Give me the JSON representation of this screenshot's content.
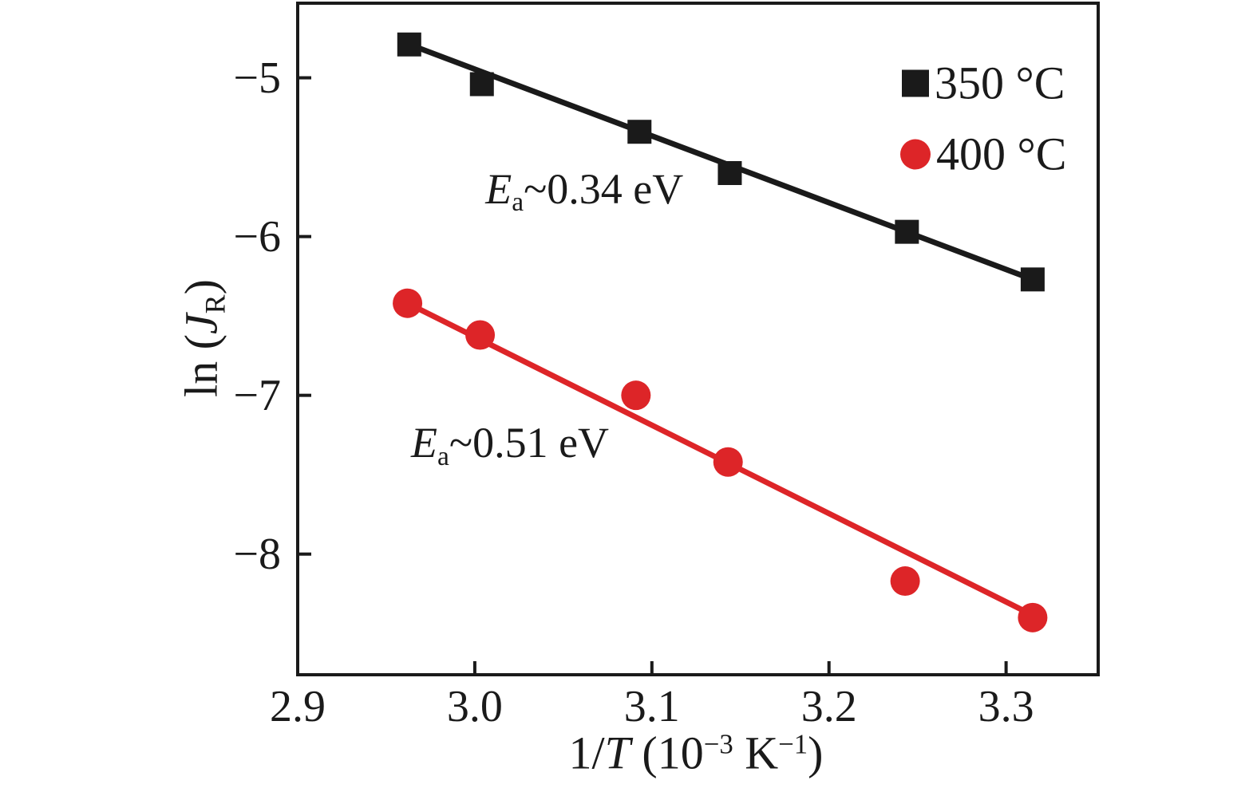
{
  "figure": {
    "background": "#ffffff",
    "frame_color": "#1a1a1a",
    "accent_red": "#dd2528"
  },
  "labels": {
    "y_axis": {
      "prefix": "ln (",
      "var": "J",
      "sub": "R",
      "suffix": ")"
    },
    "x_axis": {
      "prefix": "1/",
      "var": "T",
      "open": " (10",
      "sup1": "−3",
      "unit": " K",
      "sup2": "−1",
      "close": ")"
    },
    "x_tick_labels": [
      "2.9",
      "3.0",
      "3.1",
      "3.2",
      "3.3"
    ],
    "y_tick_labels": [
      "−5",
      "−6",
      "−7",
      "−8"
    ],
    "legend": [
      {
        "label": "350 °C"
      },
      {
        "label": "400 °C"
      }
    ],
    "annotations": [
      {
        "var": "E",
        "sub": "a",
        "rest": "~0.34 eV"
      },
      {
        "var": "E",
        "sub": "a",
        "rest": "~0.51 eV"
      }
    ]
  },
  "chart_data": {
    "type": "scatter",
    "title": "",
    "xlabel": "1/T (10^-3 K^-1)",
    "ylabel": "ln (J_R)",
    "xlim": [
      2.9,
      3.352
    ],
    "ylim": [
      -8.76,
      -4.53
    ],
    "x_ticks": [
      2.9,
      3.0,
      3.1,
      3.2,
      3.3
    ],
    "y_ticks": [
      -5,
      -6,
      -7,
      -8
    ],
    "grid": false,
    "legend_position": "top-right",
    "frame_color": "#1a1a1a",
    "series": [
      {
        "name": "350 °C",
        "marker": "square",
        "color": "#1a1a1a",
        "x": [
          2.963,
          3.004,
          3.093,
          3.144,
          3.244,
          3.315
        ],
        "y": [
          -4.79,
          -5.04,
          -5.34,
          -5.6,
          -5.97,
          -6.27
        ],
        "fit_line": {
          "x": [
            2.963,
            3.315
          ],
          "y": [
            -4.79,
            -6.27
          ]
        },
        "activation_energy_label": "Ea~0.34 eV"
      },
      {
        "name": "400 °C",
        "marker": "circle",
        "color": "#dd2528",
        "x": [
          2.962,
          3.003,
          3.091,
          3.143,
          3.243,
          3.315
        ],
        "y": [
          -6.42,
          -6.62,
          -7.0,
          -7.42,
          -8.17,
          -8.4
        ],
        "fit_line": {
          "x": [
            2.962,
            3.316
          ],
          "y": [
            -6.42,
            -8.39
          ]
        },
        "activation_energy_label": "Ea~0.51 eV"
      }
    ],
    "annotations": [
      {
        "text": "Ea~0.34 eV",
        "x": 3.006,
        "y": -5.7
      },
      {
        "text": "Ea~0.51 eV",
        "x": 2.964,
        "y": -7.3
      }
    ]
  }
}
